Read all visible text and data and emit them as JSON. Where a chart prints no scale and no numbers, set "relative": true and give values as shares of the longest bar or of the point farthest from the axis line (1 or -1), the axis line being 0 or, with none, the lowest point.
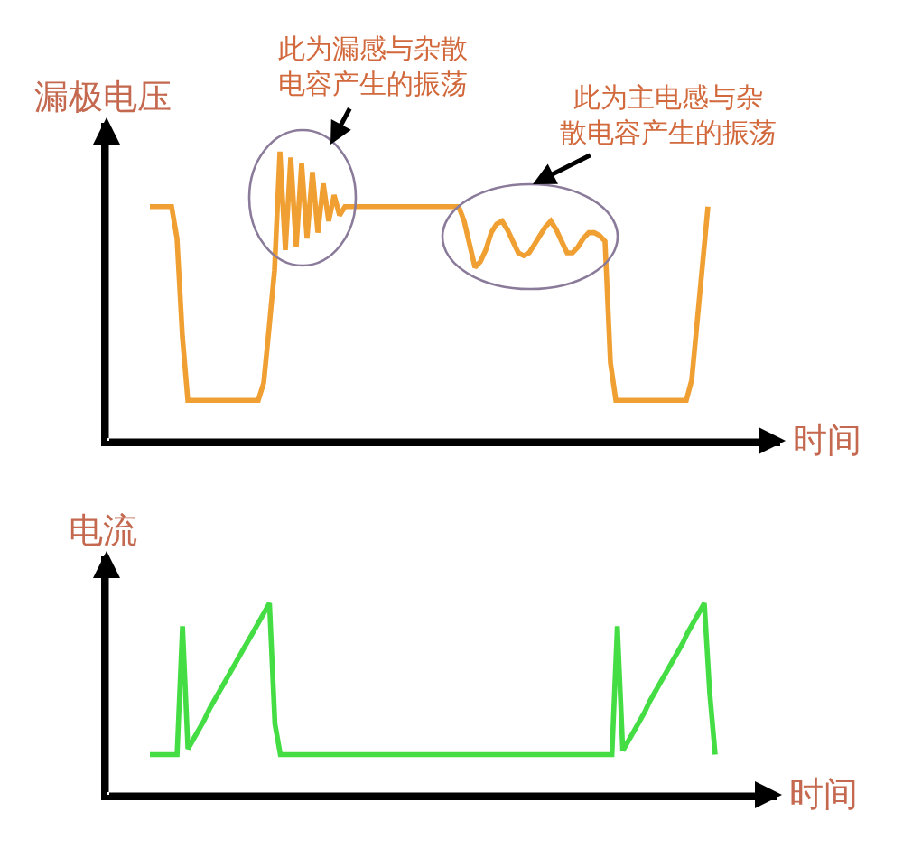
{
  "chart_data": [
    {
      "type": "line",
      "ylabel": "漏极电压",
      "xlabel": "时间",
      "annotations": [
        "此为漏感与杂散电容产生的振荡",
        "此为主电感与杂散电容产生的振荡"
      ],
      "categories": [
        null,
        null,
        null,
        null,
        null,
        null,
        null,
        null,
        null,
        null,
        null,
        null,
        null,
        null,
        null,
        null,
        null,
        null,
        null,
        null,
        null,
        null,
        null,
        null,
        null,
        null,
        null,
        null,
        null,
        null,
        null,
        null,
        null,
        null,
        null,
        null,
        null,
        null,
        null,
        null,
        null,
        null,
        null,
        null,
        null,
        null,
        null,
        null,
        null,
        null,
        null,
        null,
        null,
        null,
        null,
        null,
        null,
        null,
        null,
        null,
        null,
        null,
        null,
        null,
        null,
        null,
        null,
        null,
        null,
        null,
        null,
        null,
        null,
        null,
        null,
        null,
        null,
        null,
        null,
        null,
        null,
        null,
        null,
        null,
        null,
        null,
        null,
        null,
        null,
        null,
        null,
        null,
        null,
        null,
        null,
        null,
        null,
        null,
        null,
        null,
        null,
        null,
        null,
        null,
        null
      ],
      "relative": true,
      "series": [
        {
          "color": "#f0a032",
          "values": [
            0.81,
            0.81,
            0.81,
            0.81,
            0.81,
            0.7,
            0.36,
            0.14,
            0.14,
            0.14,
            0.14,
            0.14,
            0.14,
            0.14,
            0.14,
            0.14,
            0.14,
            0.14,
            0.14,
            0.14,
            0.14,
            0.2,
            0.39,
            0.59,
            1.0,
            0.66,
            0.98,
            0.67,
            0.96,
            0.7,
            0.93,
            0.72,
            0.89,
            0.76,
            0.85,
            0.78,
            0.81,
            0.81,
            0.81,
            0.81,
            0.81,
            0.81,
            0.81,
            0.81,
            0.81,
            0.81,
            0.81,
            0.81,
            0.81,
            0.81,
            0.81,
            0.81,
            0.81,
            0.81,
            0.81,
            0.81,
            0.81,
            0.81,
            0.76,
            0.68,
            0.6,
            0.62,
            0.66,
            0.72,
            0.75,
            0.76,
            0.73,
            0.69,
            0.65,
            0.64,
            0.65,
            0.68,
            0.71,
            0.74,
            0.76,
            0.73,
            0.69,
            0.65,
            0.65,
            0.67,
            0.7,
            0.72,
            0.72,
            0.71,
            0.69,
            0.27,
            0.14,
            0.14,
            0.14,
            0.14,
            0.14,
            0.14,
            0.14,
            0.14,
            0.14,
            0.14,
            0.14,
            0.14,
            0.14,
            0.14,
            0.21,
            0.41,
            0.61,
            0.81,
            null
          ]
        }
      ],
      "marker": "none",
      "line_style": "solid"
    },
    {
      "type": "line",
      "ylabel": "电流",
      "xlabel": "时间",
      "categories": [
        null,
        null,
        null,
        null,
        null,
        null,
        null,
        null,
        null,
        null,
        null,
        null,
        null,
        null,
        null,
        null,
        null,
        null,
        null,
        null,
        null,
        null,
        null,
        null,
        null,
        null,
        null,
        null,
        null,
        null,
        null,
        null,
        null,
        null,
        null,
        null,
        null,
        null,
        null,
        null,
        null,
        null,
        null,
        null,
        null,
        null,
        null,
        null,
        null,
        null,
        null,
        null,
        null,
        null,
        null,
        null,
        null,
        null,
        null,
        null,
        null,
        null,
        null,
        null,
        null,
        null,
        null,
        null,
        null,
        null,
        null,
        null,
        null,
        null,
        null,
        null,
        null,
        null,
        null,
        null,
        null,
        null,
        null,
        null,
        null,
        null,
        null,
        null,
        null,
        null,
        null,
        null,
        null,
        null,
        null,
        null,
        null,
        null,
        null,
        null,
        null,
        null,
        null,
        null,
        null
      ],
      "relative": true,
      "series": [
        {
          "color": "#44dd44",
          "values": [
            0.21,
            0.21,
            0.21,
            0.21,
            0.21,
            0.21,
            0.88,
            0.24,
            0.29,
            0.34,
            0.39,
            0.45,
            0.5,
            0.55,
            0.6,
            0.65,
            0.7,
            0.75,
            0.8,
            0.85,
            0.9,
            0.95,
            1.0,
            0.37,
            0.21,
            0.21,
            0.21,
            0.21,
            0.21,
            0.21,
            0.21,
            0.21,
            0.21,
            0.21,
            0.21,
            0.21,
            0.21,
            0.21,
            0.21,
            0.21,
            0.21,
            0.21,
            0.21,
            0.21,
            0.21,
            0.21,
            0.21,
            0.21,
            0.21,
            0.21,
            0.21,
            0.21,
            0.21,
            0.21,
            0.21,
            0.21,
            0.21,
            0.21,
            0.21,
            0.21,
            0.21,
            0.21,
            0.21,
            0.21,
            0.21,
            0.21,
            0.21,
            0.21,
            0.21,
            0.21,
            0.21,
            0.21,
            0.21,
            0.21,
            0.21,
            0.21,
            0.21,
            0.21,
            0.21,
            0.21,
            0.21,
            0.21,
            0.21,
            0.21,
            0.21,
            0.21,
            0.88,
            0.23,
            0.28,
            0.33,
            0.38,
            0.43,
            0.49,
            0.54,
            0.59,
            0.64,
            0.69,
            0.74,
            0.79,
            0.85,
            0.9,
            0.95,
            1.0,
            0.53,
            0.21
          ]
        }
      ],
      "marker": "none",
      "line_style": "solid"
    }
  ]
}
